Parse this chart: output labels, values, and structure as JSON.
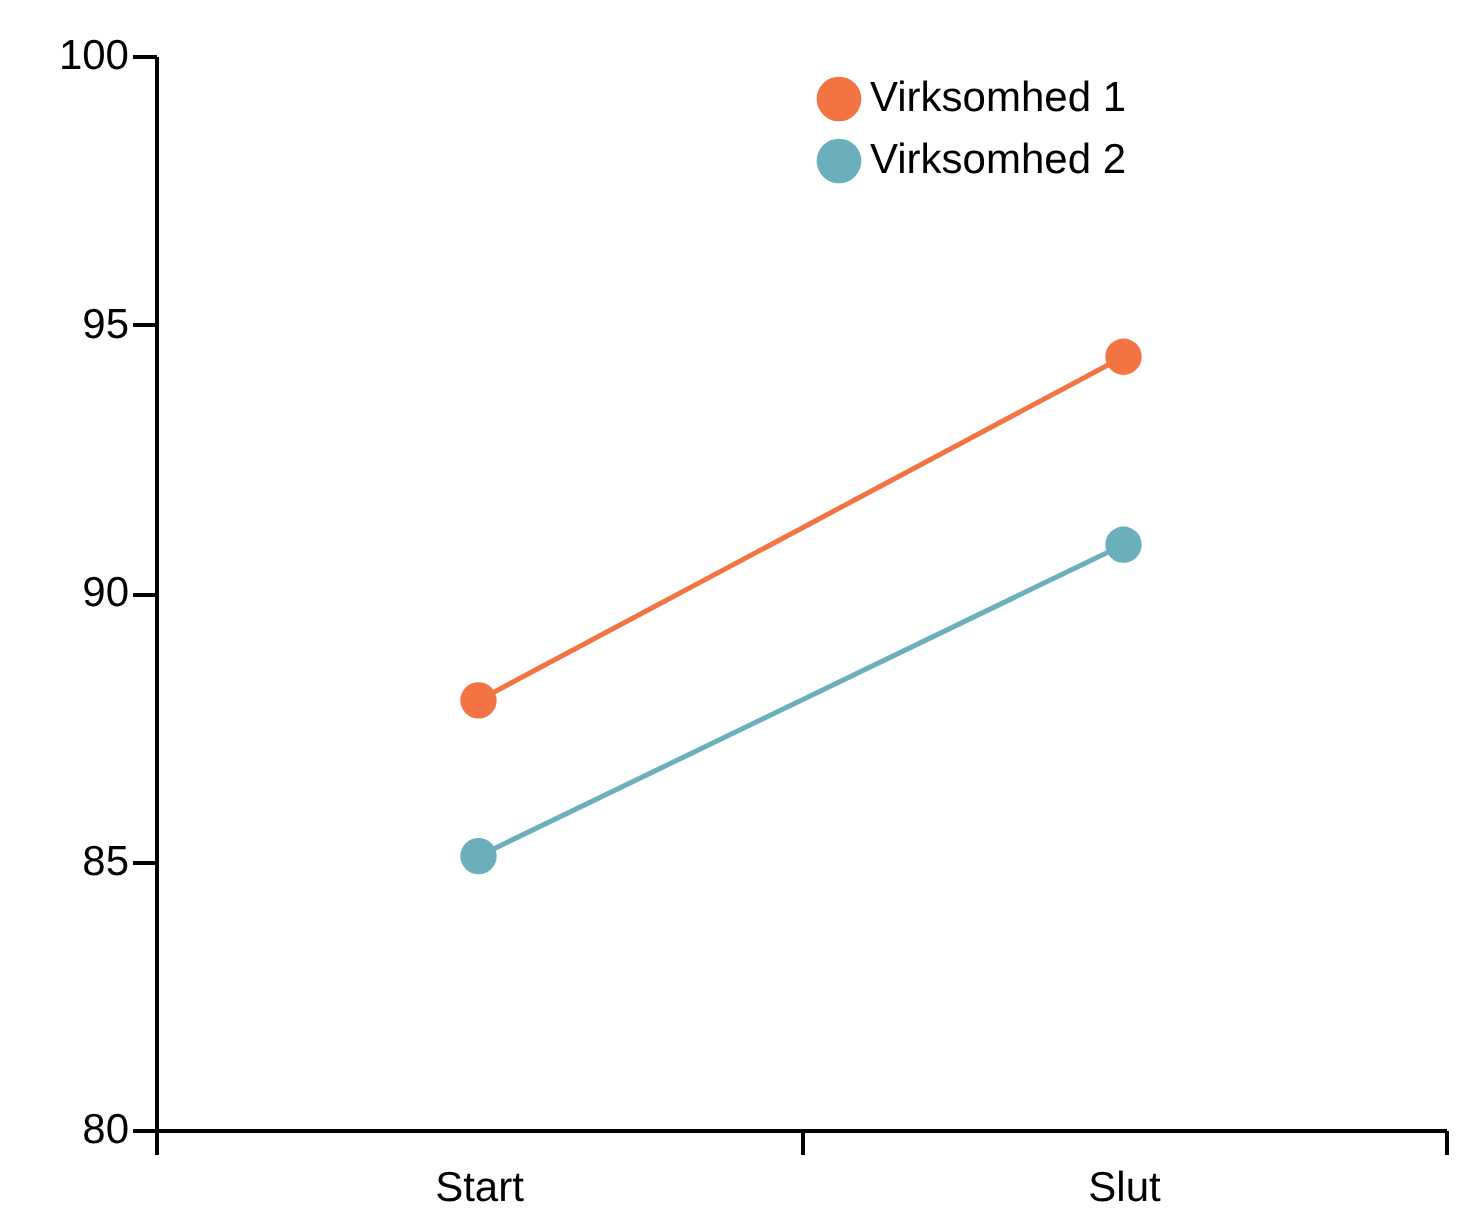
{
  "chart_data": {
    "type": "line",
    "categories": [
      "Start",
      "Slut"
    ],
    "series": [
      {
        "name": "Virksomhed 1",
        "color": "#f47342",
        "values": [
          88.0,
          94.4
        ]
      },
      {
        "name": "Virksomhed 2",
        "color": "#6aafbb",
        "values": [
          85.1,
          90.9
        ]
      }
    ],
    "ylim": [
      80,
      100
    ],
    "yticks": [
      80,
      85,
      90,
      95,
      100
    ],
    "grid": false,
    "legend": "top right",
    "marker": "circle",
    "line_style": "solid"
  }
}
